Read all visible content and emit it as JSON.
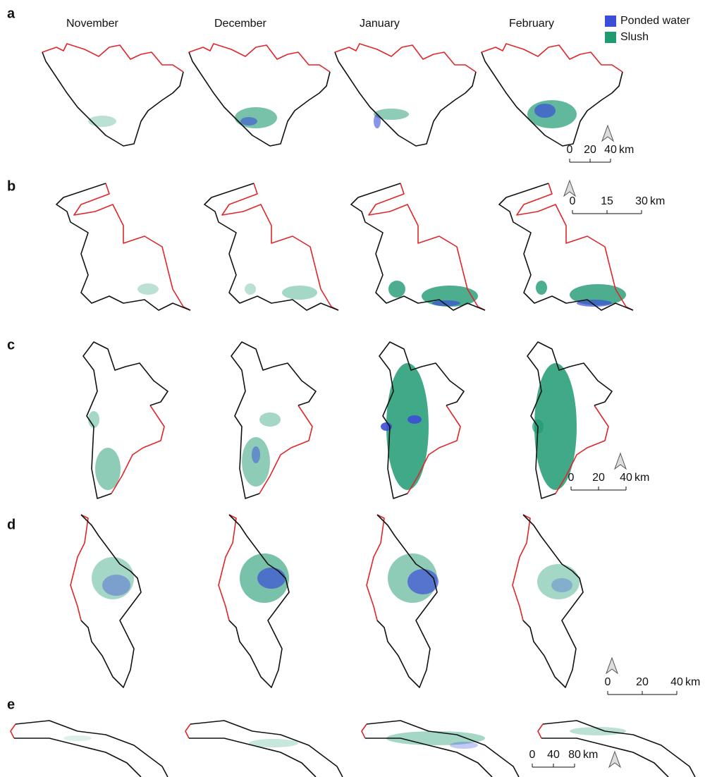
{
  "months": [
    "November",
    "December",
    "January",
    "February"
  ],
  "legend": [
    {
      "label": "Ponded water",
      "color": "#3b4ed6"
    },
    {
      "label": "Slush",
      "color": "#1f9a72"
    }
  ],
  "panels": [
    {
      "label": "a",
      "scale_bar": {
        "ticks": [
          "0",
          "20",
          "40"
        ],
        "unit": "km"
      }
    },
    {
      "label": "b",
      "scale_bar": {
        "ticks": [
          "0",
          "15",
          "30"
        ],
        "unit": "km"
      }
    },
    {
      "label": "c",
      "scale_bar": {
        "ticks": [
          "0",
          "20",
          "40"
        ],
        "unit": "km"
      }
    },
    {
      "label": "d",
      "scale_bar": {
        "ticks": [
          "0",
          "20",
          "40"
        ],
        "unit": "km"
      }
    },
    {
      "label": "e",
      "scale_bar": {
        "ticks": [
          "0",
          "40",
          "80"
        ],
        "unit": "km"
      }
    }
  ]
}
